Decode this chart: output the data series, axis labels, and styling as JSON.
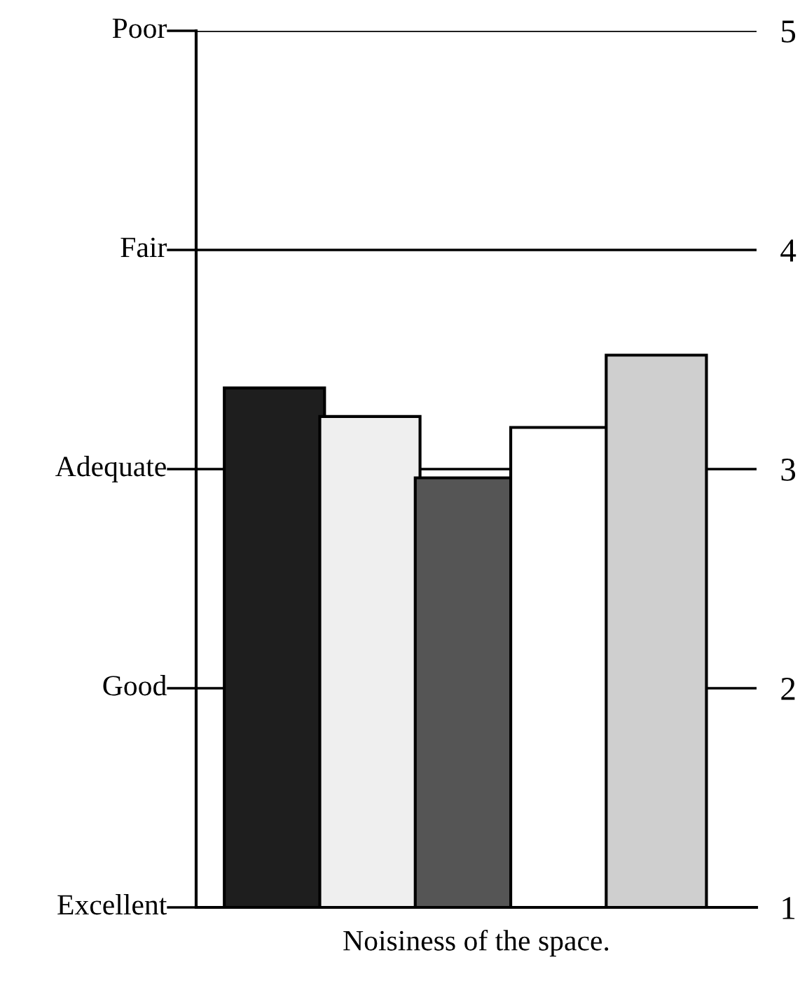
{
  "chart_data": {
    "type": "bar",
    "xlabel": "Noisiness of the space.",
    "categories": [
      null,
      null,
      null,
      null,
      null
    ],
    "values": [
      3.37,
      3.24,
      2.96,
      3.19,
      3.52
    ],
    "colors": [
      "#1e1e1e",
      "#efefef",
      "#555555",
      "#ffffff",
      "#cfcfcf"
    ],
    "ylim": [
      1,
      5
    ],
    "yticks": [
      1,
      2,
      3,
      4,
      5
    ],
    "annotations": [
      "Excellent",
      "Good",
      "Adequate",
      "Fair",
      "Poor"
    ],
    "grid": "y"
  }
}
